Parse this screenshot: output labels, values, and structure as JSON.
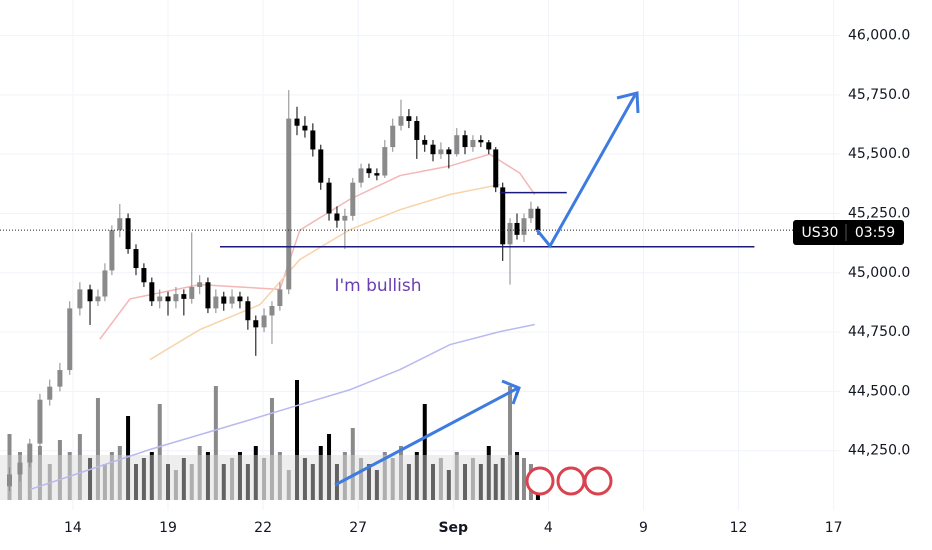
{
  "chart_data": {
    "type": "candlestick",
    "symbol": "US30",
    "countdown": "03:59",
    "annotation": "I'm bullish",
    "up_color": "#8a8a8a",
    "down_color": "#000000",
    "xlim": [
      -2.3,
      24.2
    ],
    "ylim": [
      44000,
      46150
    ],
    "grid": true,
    "xticks": [
      {
        "value": 0,
        "label": "14"
      },
      {
        "value": 3,
        "label": "19"
      },
      {
        "value": 6,
        "label": "22"
      },
      {
        "value": 9,
        "label": "27"
      },
      {
        "value": 12,
        "label": "Sep"
      },
      {
        "value": 15,
        "label": "4"
      },
      {
        "value": 18,
        "label": "9"
      },
      {
        "value": 21,
        "label": "12"
      },
      {
        "value": 24,
        "label": "17"
      }
    ],
    "yticks": [
      {
        "value": 44250,
        "label": "44,250.0"
      },
      {
        "value": 44500,
        "label": "44,500.0"
      },
      {
        "value": 44750,
        "label": "44,750.0"
      },
      {
        "value": 45000,
        "label": "45,000.0"
      },
      {
        "value": 45250,
        "label": "45,250.0"
      },
      {
        "value": 45500,
        "label": "45,500.0"
      },
      {
        "value": 45750,
        "label": "45,750.0"
      },
      {
        "value": 46000,
        "label": "46,000.0"
      }
    ],
    "last_price": 45180,
    "levels": [
      {
        "value": 45110,
        "from": 4.64,
        "to": 21.5,
        "color": "#1a1a7a"
      },
      {
        "value": 45338,
        "from": 13.47,
        "to": 15.58,
        "color": "#1a1a7a"
      }
    ],
    "candles": [
      [
        -2.0,
        44100,
        44180,
        44080,
        44150
      ],
      [
        -1.67,
        44150,
        44230,
        44120,
        44200
      ],
      [
        -1.36,
        44200,
        44300,
        44180,
        44280
      ],
      [
        -1.04,
        44280,
        44490,
        44260,
        44465
      ],
      [
        -0.73,
        44465,
        44550,
        44440,
        44520
      ],
      [
        -0.41,
        44520,
        44620,
        44500,
        44590
      ],
      [
        -0.1,
        44590,
        44880,
        44570,
        44850
      ],
      [
        0.22,
        44850,
        44960,
        44820,
        44930
      ],
      [
        0.54,
        44930,
        44950,
        44780,
        44880
      ],
      [
        0.79,
        44880,
        44930,
        44860,
        44900
      ],
      [
        1.01,
        44900,
        45040,
        44880,
        45010
      ],
      [
        1.23,
        45010,
        45200,
        44990,
        45180
      ],
      [
        1.48,
        45180,
        45290,
        45150,
        45230
      ],
      [
        1.74,
        45230,
        45250,
        45080,
        45100
      ],
      [
        1.99,
        45100,
        45120,
        44990,
        45020
      ],
      [
        2.24,
        45020,
        45040,
        44940,
        44960
      ],
      [
        2.49,
        44960,
        44980,
        44860,
        44880
      ],
      [
        2.74,
        44880,
        44930,
        44850,
        44900
      ],
      [
        3.0,
        44900,
        44920,
        44820,
        44880
      ],
      [
        3.25,
        44880,
        44940,
        44850,
        44910
      ],
      [
        3.5,
        44910,
        44930,
        44820,
        44890
      ],
      [
        3.75,
        44890,
        45170,
        44870,
        44940
      ],
      [
        4.0,
        44940,
        44990,
        44910,
        44960
      ],
      [
        4.26,
        44960,
        44980,
        44830,
        44850
      ],
      [
        4.51,
        44850,
        44930,
        44830,
        44900
      ],
      [
        4.76,
        44900,
        44920,
        44840,
        44870
      ],
      [
        5.02,
        44870,
        44930,
        44850,
        44900
      ],
      [
        5.27,
        44900,
        44920,
        44850,
        44880
      ],
      [
        5.52,
        44880,
        44900,
        44760,
        44800
      ],
      [
        5.77,
        44800,
        44820,
        44650,
        44770
      ],
      [
        6.03,
        44770,
        44850,
        44750,
        44820
      ],
      [
        6.28,
        44820,
        44880,
        44700,
        44860
      ],
      [
        6.53,
        44860,
        44960,
        44840,
        44930
      ],
      [
        6.81,
        44930,
        45770,
        44910,
        45650
      ],
      [
        7.07,
        45650,
        45700,
        45580,
        45620
      ],
      [
        7.32,
        45620,
        45660,
        45570,
        45600
      ],
      [
        7.57,
        45600,
        45630,
        45490,
        45520
      ],
      [
        7.82,
        45520,
        45540,
        45350,
        45380
      ],
      [
        8.08,
        45380,
        45400,
        45220,
        45250
      ],
      [
        8.33,
        45250,
        45280,
        45190,
        45220
      ],
      [
        8.58,
        45220,
        45270,
        45100,
        45240
      ],
      [
        8.83,
        45240,
        45400,
        45220,
        45380
      ],
      [
        9.09,
        45380,
        45460,
        45360,
        45440
      ],
      [
        9.34,
        45440,
        45460,
        45400,
        45420
      ],
      [
        9.59,
        45420,
        45440,
        45390,
        45410
      ],
      [
        9.84,
        45410,
        45560,
        45400,
        45530
      ],
      [
        10.09,
        45530,
        45650,
        45510,
        45620
      ],
      [
        10.35,
        45620,
        45730,
        45600,
        45660
      ],
      [
        10.6,
        45660,
        45690,
        45610,
        45640
      ],
      [
        10.85,
        45640,
        45660,
        45480,
        45560
      ],
      [
        11.1,
        45560,
        45580,
        45510,
        45540
      ],
      [
        11.36,
        45540,
        45560,
        45470,
        45500
      ],
      [
        11.61,
        45500,
        45550,
        45480,
        45520
      ],
      [
        11.86,
        45520,
        45530,
        45440,
        45500
      ],
      [
        12.11,
        45500,
        45610,
        45490,
        45580
      ],
      [
        12.37,
        45580,
        45600,
        45500,
        45530
      ],
      [
        12.62,
        45530,
        45580,
        45510,
        45560
      ],
      [
        12.87,
        45560,
        45580,
        45530,
        45550
      ],
      [
        13.12,
        45550,
        45560,
        45500,
        45520
      ],
      [
        13.34,
        45520,
        45530,
        45340,
        45360
      ],
      [
        13.56,
        45360,
        45380,
        45050,
        45120
      ],
      [
        13.79,
        45120,
        45230,
        44950,
        45210
      ],
      [
        14.01,
        45210,
        45250,
        45140,
        45160
      ],
      [
        14.23,
        45160,
        45250,
        45130,
        45230
      ],
      [
        14.45,
        45230,
        45300,
        45210,
        45270
      ],
      [
        14.67,
        45270,
        45280,
        45160,
        45180
      ]
    ],
    "volume": {
      "vlim": [
        0,
        100
      ],
      "values": [
        55,
        40,
        35,
        45,
        30,
        50,
        40,
        55,
        35,
        85,
        30,
        40,
        45,
        70,
        30,
        35,
        40,
        80,
        30,
        25,
        35,
        30,
        45,
        40,
        95,
        30,
        35,
        40,
        30,
        45,
        35,
        85,
        40,
        25,
        100,
        35,
        30,
        45,
        55,
        30,
        40,
        60,
        35,
        30,
        25,
        40,
        35,
        45,
        30,
        40,
        80,
        30,
        35,
        25,
        40,
        30,
        35,
        30,
        45,
        30,
        35,
        95,
        40,
        35,
        30,
        25
      ]
    },
    "overlays": [
      {
        "color": "#f4b6b6",
        "x": [
          0.85,
          1.8,
          4.0,
          6.53,
          7.16,
          8.74,
          10.32,
          11.89,
          13.15,
          14.1,
          14.57
        ],
        "values": [
          44720,
          44890,
          44950,
          44930,
          45180,
          45310,
          45410,
          45450,
          45500,
          45420,
          45330
        ]
      },
      {
        "color": "#f8d3a8",
        "x": [
          2.43,
          4.0,
          5.9,
          7.16,
          8.74,
          10.32,
          11.89,
          13.47
        ],
        "values": [
          44634,
          44760,
          44866,
          45056,
          45182,
          45266,
          45330,
          45372
        ]
      },
      {
        "color": "#b9b9f0",
        "x": [
          -1.36,
          2.43,
          5.58,
          7.16,
          8.74,
          10.32,
          11.89,
          13.47,
          14.57
        ],
        "values": [
          44086,
          44255,
          44380,
          44444,
          44507,
          44592,
          44697,
          44752,
          44782
        ]
      }
    ]
  }
}
